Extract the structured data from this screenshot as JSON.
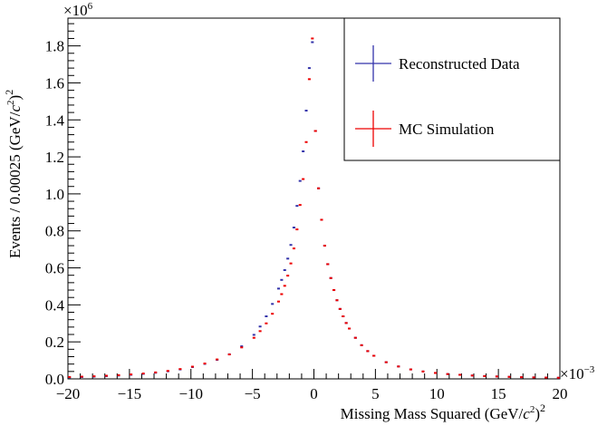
{
  "chart_data": {
    "type": "scatter",
    "title": "",
    "xlabel_main": "Missing Mass Squared (GeV/",
    "xlabel_italic": "c",
    "xlabel_tail": ")",
    "xlabel_exp_inner": "2",
    "xlabel_exp_outer": "2",
    "ylabel_main": "Events / 0.00025 (GeV/",
    "ylabel_italic": "c",
    "ylabel_tail": ")",
    "ylabel_exp_inner": "2",
    "ylabel_exp_outer": "2",
    "x_multiplier_base": "×10",
    "x_multiplier_exp": "−3",
    "y_multiplier_base": "×10",
    "y_multiplier_exp": "6",
    "xlim": [
      -20,
      20
    ],
    "ylim": [
      0,
      1.95
    ],
    "x_ticks": [
      -20,
      -15,
      -10,
      -5,
      0,
      5,
      10,
      15,
      20
    ],
    "x_tick_labels": [
      "−20",
      "−15",
      "−10",
      "−5",
      "0",
      "5",
      "10",
      "15",
      "20"
    ],
    "y_ticks": [
      0,
      0.2,
      0.4,
      0.6,
      0.8,
      1.0,
      1.2,
      1.4,
      1.6,
      1.8
    ],
    "y_tick_labels": [
      "0.0",
      "0.2",
      "0.4",
      "0.6",
      "0.8",
      "1.0",
      "1.2",
      "1.4",
      "1.6",
      "1.8"
    ],
    "grid": false,
    "legend_position": "top-right",
    "series": [
      {
        "name": "Reconstructed Data",
        "color": "#3333aa",
        "x": [
          -19.875,
          -18.875,
          -17.875,
          -16.875,
          -15.875,
          -14.875,
          -13.875,
          -12.875,
          -11.875,
          -10.875,
          -9.875,
          -8.875,
          -7.875,
          -6.875,
          -5.875,
          -4.875,
          -4.375,
          -3.875,
          -3.375,
          -2.875,
          -2.625,
          -2.375,
          -2.125,
          -1.875,
          -1.625,
          -1.375,
          -1.125,
          -0.875,
          -0.625,
          -0.375,
          -0.125,
          0.125,
          0.375,
          0.625,
          0.875,
          1.125,
          1.375,
          1.625,
          1.875,
          2.125,
          2.375,
          2.625,
          2.875,
          3.375,
          3.875,
          4.375,
          4.875,
          5.875,
          6.875,
          7.875,
          8.875,
          9.875,
          10.875,
          11.875,
          12.875,
          13.875,
          14.875,
          15.875,
          16.875,
          17.875,
          18.875,
          19.875
        ],
        "y": [
          0.008,
          0.01,
          0.012,
          0.015,
          0.018,
          0.022,
          0.027,
          0.033,
          0.041,
          0.051,
          0.064,
          0.081,
          0.103,
          0.133,
          0.176,
          0.238,
          0.283,
          0.338,
          0.405,
          0.488,
          0.535,
          0.588,
          0.65,
          0.724,
          0.818,
          0.935,
          1.07,
          1.23,
          1.45,
          1.68,
          1.82,
          1.34,
          1.03,
          0.86,
          0.72,
          0.62,
          0.545,
          0.48,
          0.425,
          0.378,
          0.338,
          0.302,
          0.272,
          0.222,
          0.182,
          0.15,
          0.125,
          0.09,
          0.067,
          0.051,
          0.04,
          0.032,
          0.026,
          0.022,
          0.018,
          0.015,
          0.013,
          0.011,
          0.009,
          0.008,
          0.007,
          0.006
        ]
      },
      {
        "name": "MC Simulation",
        "color": "#ee0000",
        "x": [
          -19.875,
          -18.875,
          -17.875,
          -16.875,
          -15.875,
          -14.875,
          -13.875,
          -12.875,
          -11.875,
          -10.875,
          -9.875,
          -8.875,
          -7.875,
          -6.875,
          -5.875,
          -4.875,
          -4.375,
          -3.875,
          -3.375,
          -2.875,
          -2.625,
          -2.375,
          -2.125,
          -1.875,
          -1.625,
          -1.375,
          -1.125,
          -0.875,
          -0.625,
          -0.375,
          -0.125,
          0.125,
          0.375,
          0.625,
          0.875,
          1.125,
          1.375,
          1.625,
          1.875,
          2.125,
          2.375,
          2.625,
          2.875,
          3.375,
          3.875,
          4.375,
          4.875,
          5.875,
          6.875,
          7.875,
          8.875,
          9.875,
          10.875,
          11.875,
          12.875,
          13.875,
          14.875,
          15.875,
          16.875,
          17.875,
          18.875,
          19.875
        ],
        "y": [
          0.01,
          0.012,
          0.014,
          0.017,
          0.02,
          0.024,
          0.029,
          0.035,
          0.043,
          0.053,
          0.066,
          0.083,
          0.105,
          0.132,
          0.17,
          0.222,
          0.258,
          0.3,
          0.352,
          0.418,
          0.458,
          0.503,
          0.558,
          0.624,
          0.705,
          0.808,
          0.94,
          1.08,
          1.28,
          1.62,
          1.84,
          1.34,
          1.03,
          0.86,
          0.72,
          0.62,
          0.545,
          0.48,
          0.425,
          0.378,
          0.338,
          0.302,
          0.272,
          0.222,
          0.182,
          0.15,
          0.125,
          0.09,
          0.067,
          0.051,
          0.04,
          0.032,
          0.026,
          0.022,
          0.018,
          0.015,
          0.013,
          0.011,
          0.009,
          0.008,
          0.007,
          0.006
        ]
      }
    ]
  }
}
